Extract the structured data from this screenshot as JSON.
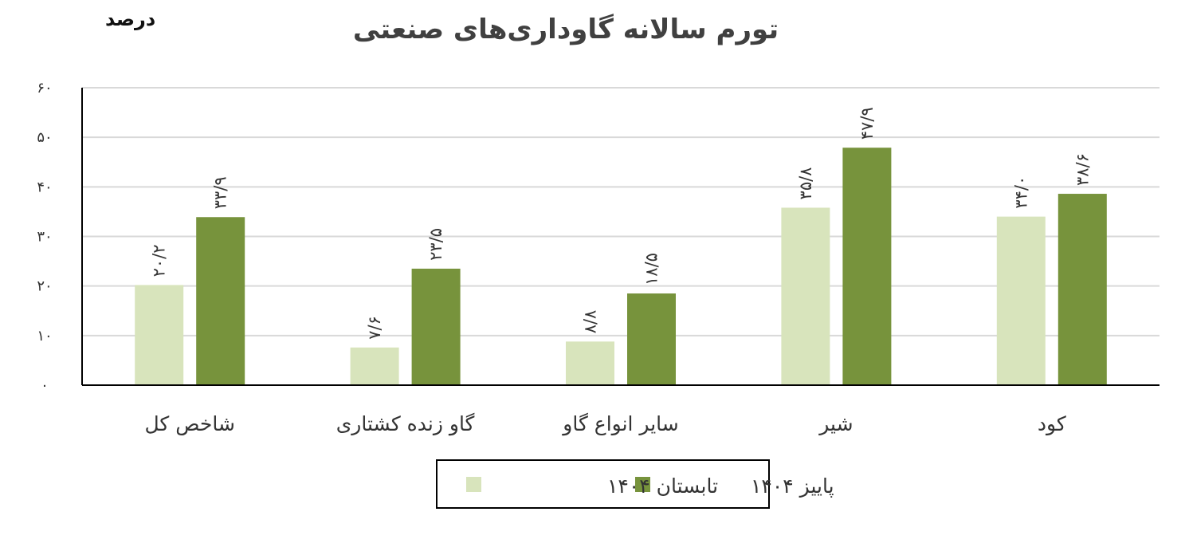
{
  "chart_data": {
    "type": "bar",
    "title": "تورم سالانه گاوداری‌های صنعتی",
    "unit_label": "درصد",
    "categories": [
      "شاخص کل",
      "گاو زنده کشتاری",
      "سایر انواع گاو",
      "شیر",
      "کود"
    ],
    "series": [
      {
        "name": "تابستان ۱۴۰۴",
        "color": "#d8e4bc",
        "values": [
          20.2,
          7.6,
          8.8,
          35.8,
          34.0
        ],
        "labels": [
          "۲۰/۲",
          "۷/۶",
          "۸/۸",
          "۳۵/۸",
          "۳۴/۰"
        ]
      },
      {
        "name": "پاییز ۱۴۰۴",
        "color": "#77933c",
        "values": [
          33.9,
          23.5,
          18.5,
          47.9,
          38.6
        ],
        "labels": [
          "۳۳/۹",
          "۲۳/۵",
          "۱۸/۵",
          "۴۷/۹",
          "۳۸/۶"
        ]
      }
    ],
    "yticks": [
      0,
      10,
      20,
      30,
      40,
      50,
      60
    ],
    "ytick_labels": [
      "۰",
      "۱۰",
      "۲۰",
      "۳۰",
      "۴۰",
      "۵۰",
      "۶۰"
    ],
    "ylim": [
      0,
      60
    ],
    "grid": true,
    "legend_position": "bottom"
  }
}
